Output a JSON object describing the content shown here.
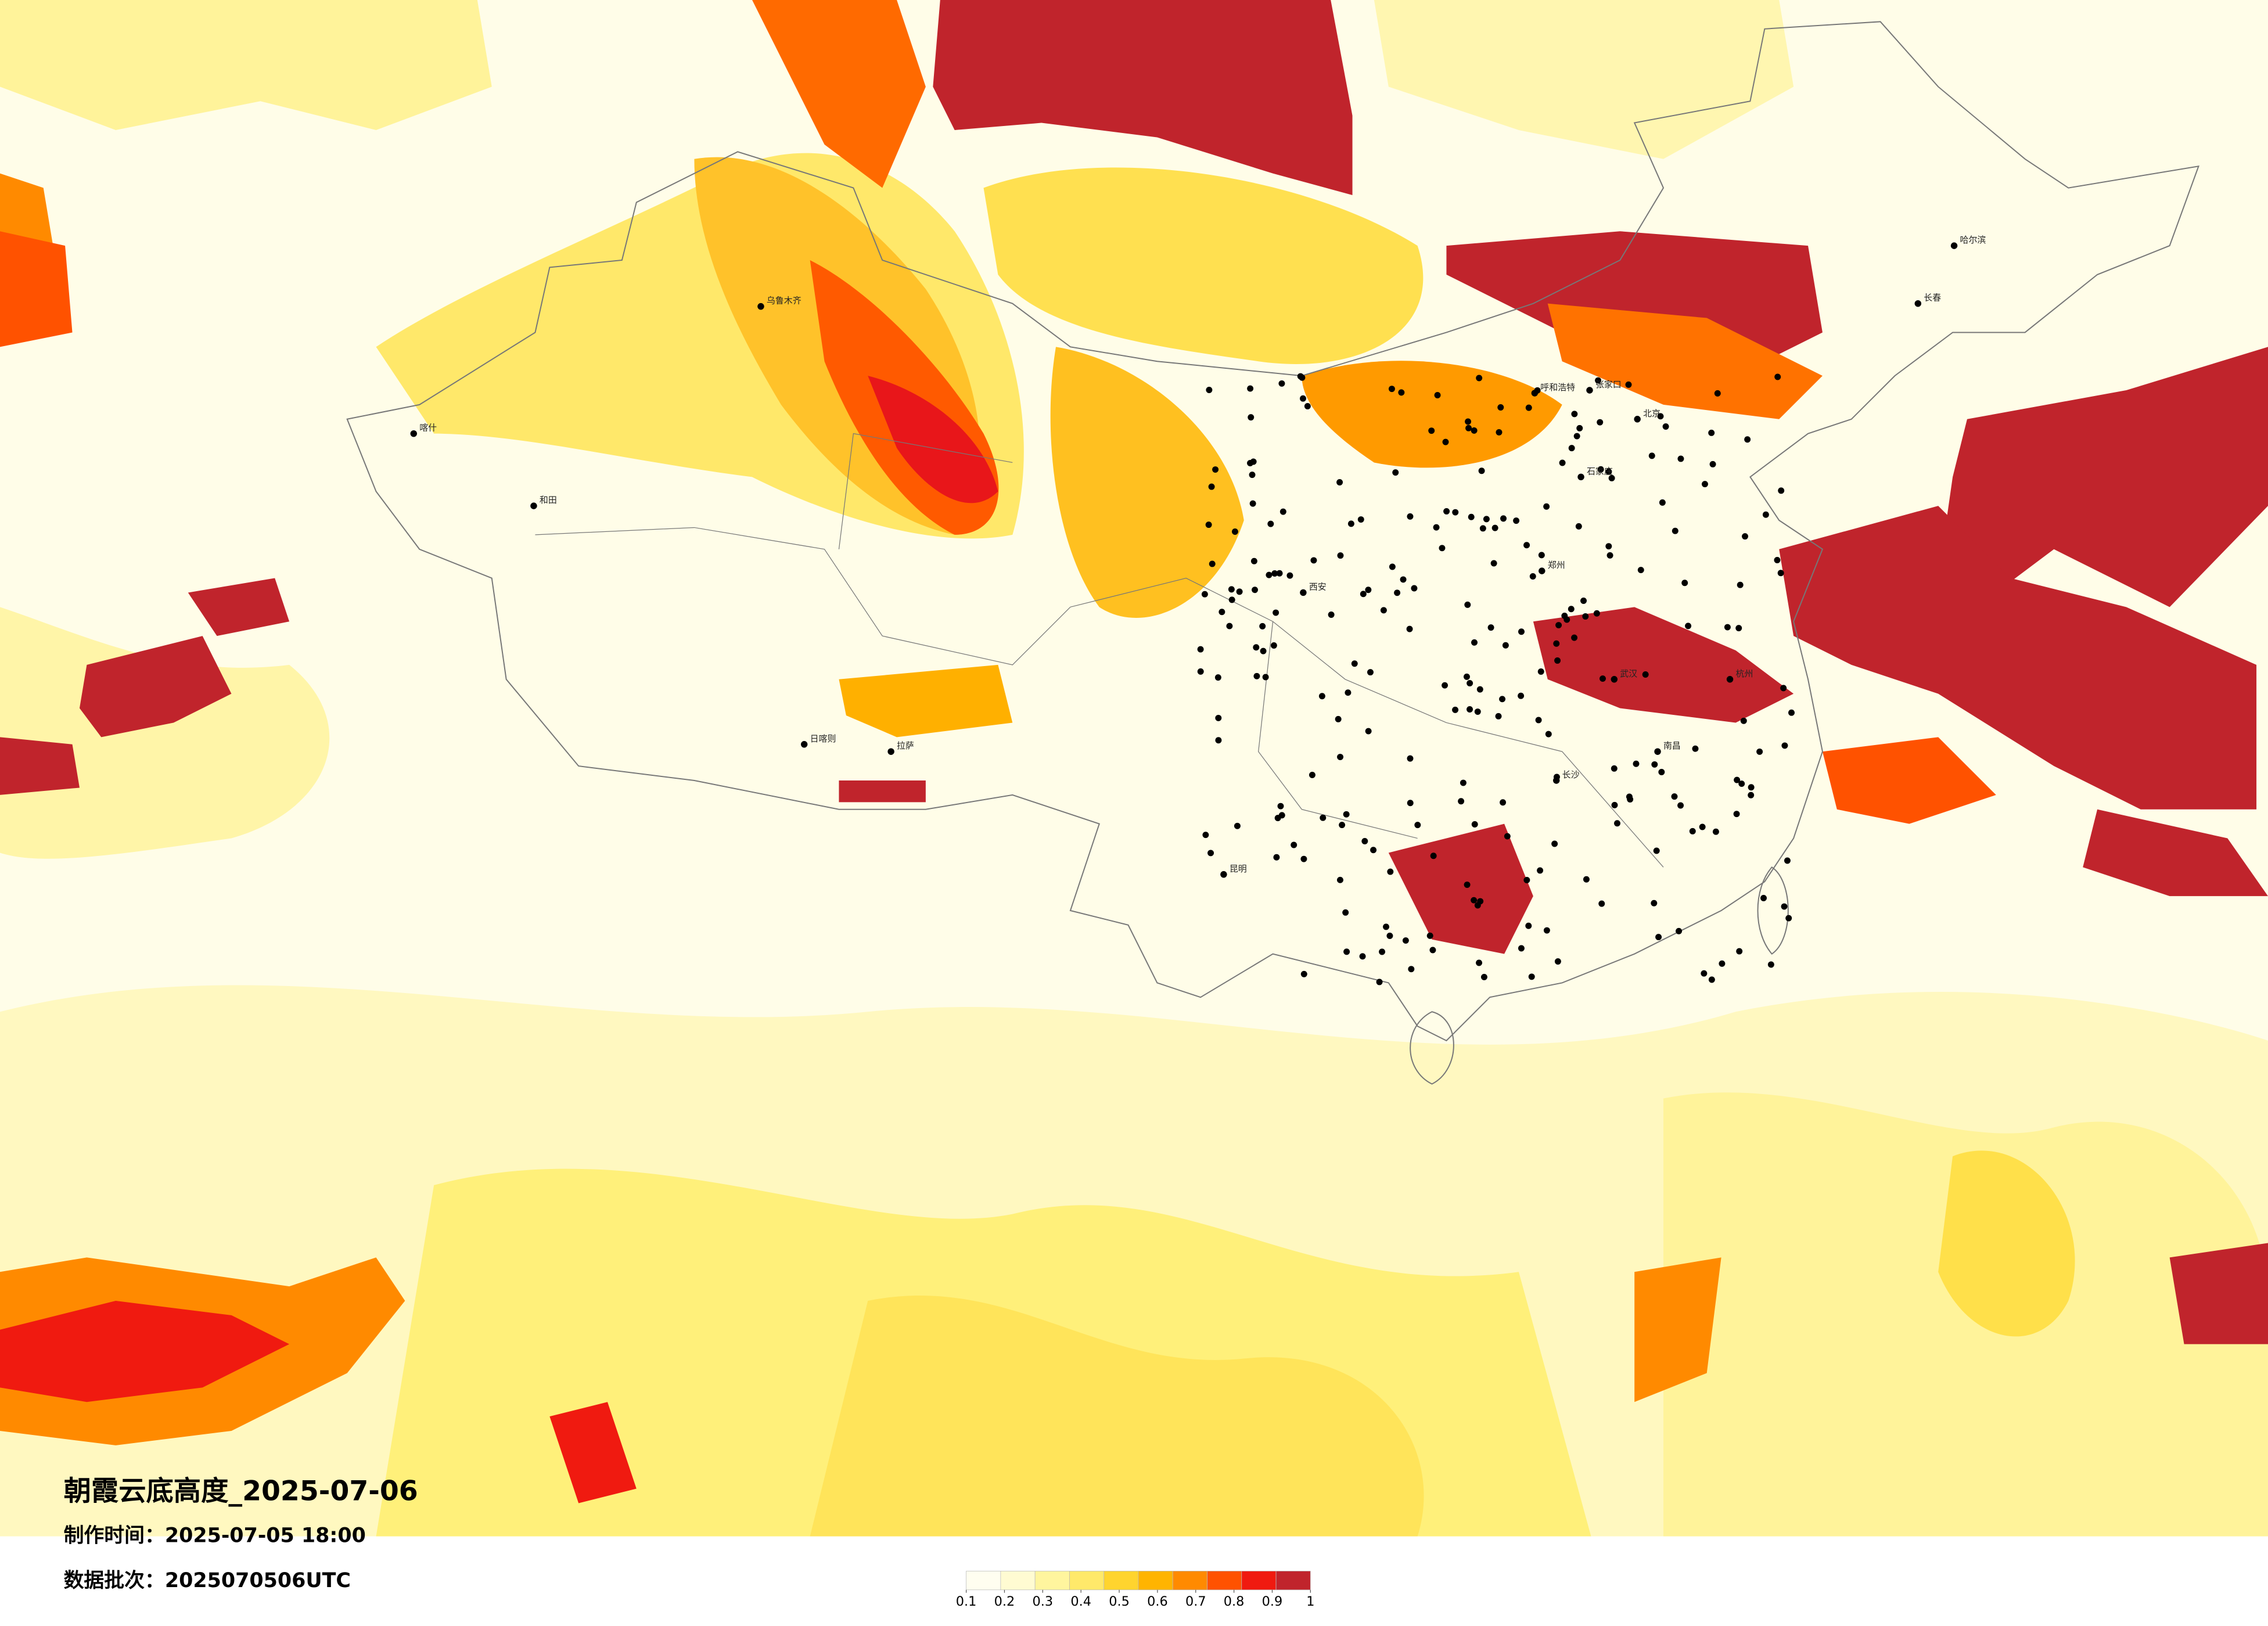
{
  "header": {
    "title": "朝霞云底高度_2025-07-06",
    "made_time": "制作时间：2025-07-05 18:00",
    "batch": "数据批次：2025070506UTC"
  },
  "colorbar": {
    "ticks": [
      0.1,
      0.2,
      0.3,
      0.4,
      0.5,
      0.6,
      0.7,
      0.8,
      0.9,
      1
    ],
    "colors": [
      "#fffef0",
      "#fffbd2",
      "#fff59e",
      "#ffe96a",
      "#ffd42e",
      "#ffb400",
      "#ff8a00",
      "#ff5200",
      "#f01a10",
      "#c0242c"
    ]
  },
  "cities": [
    "北京",
    "张家口",
    "呼和浩特",
    "石家庄",
    "郑州",
    "西安",
    "武汉",
    "长沙",
    "南昌",
    "杭州",
    "哈尔滨",
    "长春",
    "乌鲁木齐",
    "拉萨",
    "昆明",
    "和田",
    "喀什",
    "日喀则"
  ]
}
